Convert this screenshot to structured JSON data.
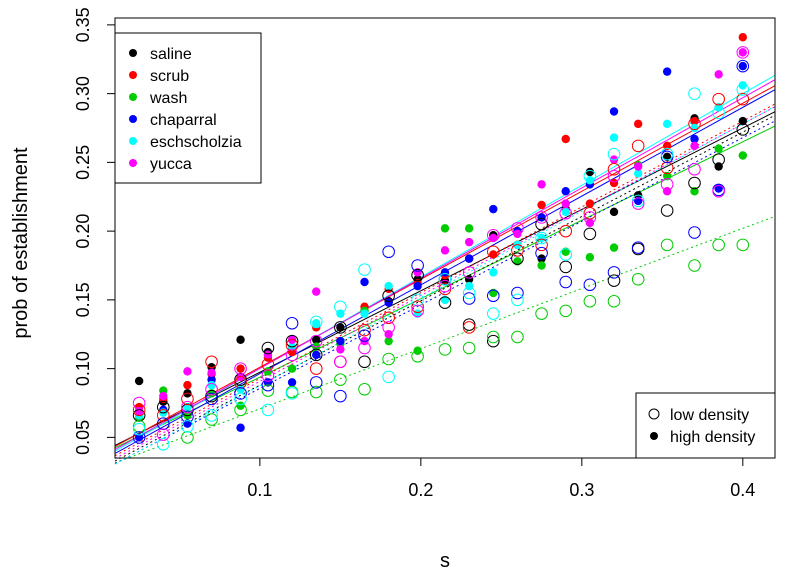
{
  "chart_data": {
    "type": "scatter",
    "title": "",
    "xlabel": "s",
    "ylabel": "prob of establishment",
    "xlim": [
      0.01,
      0.42
    ],
    "ylim": [
      0.035,
      0.355
    ],
    "x_ticks": [
      "0.1",
      "0.2",
      "0.3",
      "0.4"
    ],
    "y_ticks": [
      "0.05",
      "0.10",
      "0.15",
      "0.20",
      "0.25",
      "0.30",
      "0.35"
    ],
    "grid": false,
    "legend": {
      "placement": "top-left",
      "entries": [
        {
          "name": "saline",
          "color": "#000000"
        },
        {
          "name": "scrub",
          "color": "#ff0000"
        },
        {
          "name": "wash",
          "color": "#00cd00"
        },
        {
          "name": "chaparral",
          "color": "#0000ff"
        },
        {
          "name": "eschscholzia",
          "color": "#00ffff"
        },
        {
          "name": "yucca",
          "color": "#ff00ff"
        }
      ]
    },
    "legend2": {
      "placement": "bottom-right",
      "entries": [
        {
          "name": "low density",
          "marker": "open-circle"
        },
        {
          "name": "high density",
          "marker": "filled-circle"
        }
      ]
    },
    "x": [
      0.025,
      0.04,
      0.055,
      0.07,
      0.088,
      0.105,
      0.12,
      0.135,
      0.15,
      0.165,
      0.18,
      0.198,
      0.215,
      0.23,
      0.245,
      0.26,
      0.275,
      0.29,
      0.305,
      0.32,
      0.335,
      0.353,
      0.37,
      0.385,
      0.4
    ],
    "series": [
      {
        "name": "saline",
        "color": "#000000",
        "density": "high",
        "values": [
          0.091,
          0.076,
          0.082,
          0.101,
          0.121,
          0.112,
          0.114,
          0.121,
          0.13,
          0.142,
          0.149,
          0.165,
          0.164,
          0.165,
          0.197,
          0.19,
          0.18,
          0.216,
          0.243,
          0.214,
          0.226,
          0.254,
          0.282,
          0.247,
          0.28
        ],
        "fit": [
          0.053,
          0.275
        ]
      },
      {
        "name": "scrub",
        "color": "#ff0000",
        "density": "high",
        "values": [
          0.072,
          0.078,
          0.088,
          0.096,
          0.1,
          0.108,
          0.112,
          0.13,
          0.12,
          0.145,
          0.158,
          0.162,
          0.168,
          0.18,
          0.183,
          0.19,
          0.219,
          0.267,
          0.22,
          0.235,
          0.278,
          0.262,
          0.28,
          0.29,
          0.341
        ],
        "fit": [
          0.053,
          0.293
        ]
      },
      {
        "name": "wash",
        "color": "#00cd00",
        "density": "high",
        "values": [
          0.065,
          0.084,
          0.066,
          0.082,
          0.073,
          0.098,
          0.1,
          0.116,
          0.118,
          0.142,
          0.12,
          0.113,
          0.202,
          0.202,
          0.155,
          0.178,
          0.175,
          0.185,
          0.181,
          0.188,
          0.248,
          0.24,
          0.229,
          0.26,
          0.255
        ],
        "fit": [
          0.051,
          0.265
        ]
      },
      {
        "name": "chaparral",
        "color": "#0000ff",
        "density": "high",
        "values": [
          0.05,
          0.07,
          0.06,
          0.092,
          0.057,
          0.09,
          0.09,
          0.11,
          0.12,
          0.163,
          0.148,
          0.16,
          0.17,
          0.18,
          0.216,
          0.2,
          0.21,
          0.229,
          0.234,
          0.287,
          0.222,
          0.316,
          0.267,
          0.231,
          0.32
        ],
        "fit": [
          0.048,
          0.29
        ]
      },
      {
        "name": "eschscholzia",
        "color": "#00ffff",
        "density": "high",
        "values": [
          0.066,
          0.068,
          0.072,
          0.088,
          0.085,
          0.11,
          0.116,
          0.133,
          0.14,
          0.14,
          0.16,
          0.14,
          0.15,
          0.16,
          0.17,
          0.19,
          0.195,
          0.214,
          0.237,
          0.268,
          0.242,
          0.278,
          0.275,
          0.29,
          0.306
        ],
        "fit": [
          0.05,
          0.3
        ]
      },
      {
        "name": "yucca",
        "color": "#ff00ff",
        "density": "high",
        "values": [
          0.069,
          0.08,
          0.098,
          0.097,
          0.094,
          0.11,
          0.121,
          0.156,
          0.114,
          0.12,
          0.125,
          0.17,
          0.186,
          0.192,
          0.195,
          0.198,
          0.234,
          0.22,
          0.206,
          0.252,
          0.247,
          0.229,
          0.262,
          0.314,
          0.33
        ],
        "fit": [
          0.051,
          0.297
        ]
      },
      {
        "name": "saline",
        "color": "#000000",
        "density": "low",
        "values": [
          0.066,
          0.072,
          0.07,
          0.08,
          0.092,
          0.115,
          0.12,
          0.11,
          0.13,
          0.105,
          0.153,
          0.168,
          0.148,
          0.132,
          0.12,
          0.18,
          0.205,
          0.174,
          0.198,
          0.164,
          0.187,
          0.215,
          0.235,
          0.252,
          0.274
        ],
        "fit": [
          0.042,
          0.272
        ]
      },
      {
        "name": "scrub",
        "color": "#ff0000",
        "density": "low",
        "values": [
          0.07,
          0.066,
          0.078,
          0.105,
          0.09,
          0.103,
          0.117,
          0.1,
          0.105,
          0.128,
          0.137,
          0.145,
          0.158,
          0.13,
          0.185,
          0.186,
          0.19,
          0.2,
          0.213,
          0.245,
          0.262,
          0.246,
          0.278,
          0.296,
          0.296
        ],
        "fit": [
          0.046,
          0.28
        ]
      },
      {
        "name": "wash",
        "color": "#00cd00",
        "density": "low",
        "values": [
          0.058,
          0.06,
          0.05,
          0.063,
          0.07,
          0.084,
          0.083,
          0.083,
          0.092,
          0.085,
          0.107,
          0.109,
          0.114,
          0.115,
          0.123,
          0.123,
          0.14,
          0.142,
          0.149,
          0.149,
          0.165,
          0.19,
          0.175,
          0.19,
          0.19
        ],
        "fit": [
          0.038,
          0.202
        ]
      },
      {
        "name": "chaparral",
        "color": "#0000ff",
        "density": "low",
        "values": [
          0.05,
          0.06,
          0.065,
          0.078,
          0.082,
          0.088,
          0.133,
          0.09,
          0.08,
          0.124,
          0.185,
          0.175,
          0.165,
          0.151,
          0.153,
          0.155,
          0.184,
          0.163,
          0.161,
          0.17,
          0.188,
          0.254,
          0.199,
          0.23,
          0.32
        ],
        "fit": [
          0.04,
          0.268
        ]
      },
      {
        "name": "eschscholzia",
        "color": "#00ffff",
        "density": "low",
        "values": [
          0.056,
          0.045,
          0.058,
          0.066,
          0.078,
          0.07,
          0.082,
          0.134,
          0.145,
          0.172,
          0.094,
          0.15,
          0.165,
          0.155,
          0.14,
          0.15,
          0.195,
          0.183,
          0.24,
          0.256,
          0.222,
          0.256,
          0.3,
          0.286,
          0.303
        ],
        "fit": [
          0.04,
          0.278
        ]
      },
      {
        "name": "yucca",
        "color": "#ff00ff",
        "density": "low",
        "values": [
          0.075,
          0.052,
          0.072,
          0.085,
          0.1,
          0.095,
          0.11,
          0.12,
          0.105,
          0.115,
          0.13,
          0.142,
          0.16,
          0.17,
          0.197,
          0.202,
          0.21,
          0.213,
          0.21,
          0.24,
          0.22,
          0.234,
          0.245,
          0.229,
          0.33
        ],
        "fit": [
          0.044,
          0.278
        ]
      }
    ]
  }
}
